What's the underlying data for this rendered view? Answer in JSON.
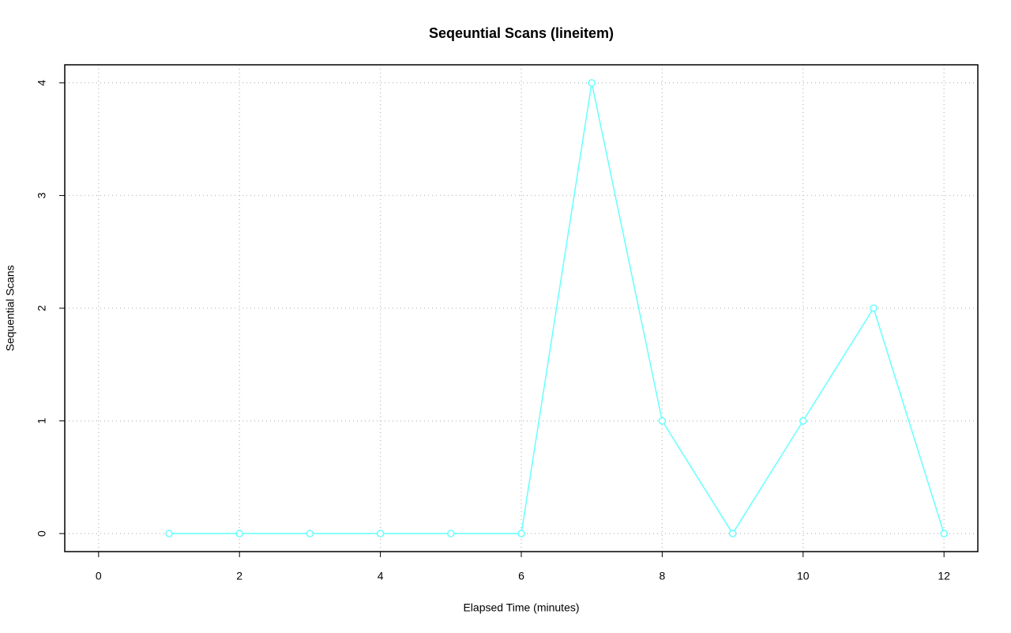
{
  "chart_data": {
    "type": "line",
    "title": "Seqeuntial Scans (lineitem)",
    "x_label": "Elapsed Time (minutes)",
    "y_label": "Sequential Scans",
    "x": [
      1,
      2,
      3,
      4,
      5,
      6,
      7,
      8,
      9,
      10,
      11,
      12
    ],
    "series": [
      {
        "name": "Sequential Scans",
        "color": "#66ffff",
        "values": [
          0,
          0,
          0,
          0,
          0,
          0,
          4,
          1,
          0,
          1,
          2,
          0
        ]
      }
    ],
    "xlim": [
      -0.48,
      12.48
    ],
    "xticks": [
      0,
      2,
      4,
      6,
      8,
      10,
      12
    ],
    "ylim": [
      -0.16,
      4.16
    ],
    "yticks": [
      0,
      1,
      2,
      3,
      4
    ],
    "grid": true
  }
}
